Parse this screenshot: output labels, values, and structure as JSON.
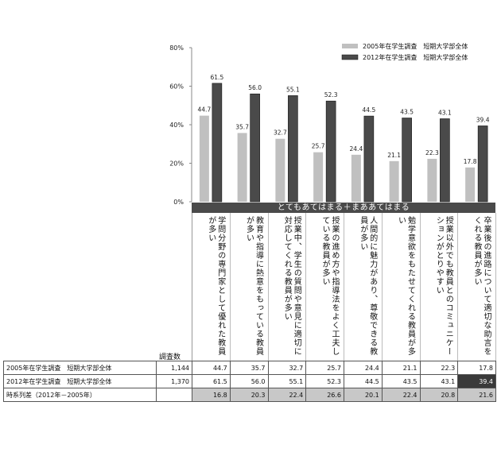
{
  "chart_data": {
    "type": "bar",
    "categories": [
      "学問分野の専門家として優れた教員が多い",
      "教育や指導に熱意をもっている教員が多い",
      "授業中、学生の質問や意見に適切に対応してくれる教員が多い",
      "授業の進め方や指導法をよく工夫している教員が多い",
      "人間的に魅力があり、尊敬できる教員が多い",
      "勉学意欲をもたせてくれる教員が多い",
      "授業以外でも教員とのコミュニケーションがとりやすい",
      "卒業後の進路について適切な助言をくれる教員が多い"
    ],
    "series": [
      {
        "name": "2005年在学生調査　短期大学部全体",
        "values": [
          44.7,
          35.7,
          32.7,
          25.7,
          24.4,
          21.1,
          22.3,
          17.8
        ],
        "color": "#c0c0c0"
      },
      {
        "name": "2012年在学生調査　短期大学部全体",
        "values": [
          61.5,
          56.0,
          55.1,
          52.3,
          44.5,
          43.5,
          43.1,
          39.4
        ],
        "color": "#4a4a4a"
      }
    ],
    "y_ticks": [
      "0%",
      "20%",
      "40%",
      "60%",
      "80%"
    ],
    "ylim": [
      0,
      80
    ],
    "legend_position": "top-right",
    "banner": "とてもあてはまる＋まああてはまる"
  },
  "table": {
    "n_header": "調査数",
    "rows": [
      {
        "label": "2005年在学生調査　短期大学部全体",
        "n": "1,144",
        "values": [
          "44.7",
          "35.7",
          "32.7",
          "25.7",
          "24.4",
          "21.1",
          "22.3",
          "17.8"
        ]
      },
      {
        "label": "2012年在学生調査　短期大学部全体",
        "n": "1,370",
        "values": [
          "61.5",
          "56.0",
          "55.1",
          "52.3",
          "44.5",
          "43.5",
          "43.1",
          "39.4"
        ]
      },
      {
        "label": "時系列差（2012年－2005年）",
        "n": "",
        "values": [
          "16.8",
          "20.3",
          "22.4",
          "26.6",
          "20.1",
          "22.4",
          "20.8",
          "21.6"
        ]
      }
    ]
  }
}
